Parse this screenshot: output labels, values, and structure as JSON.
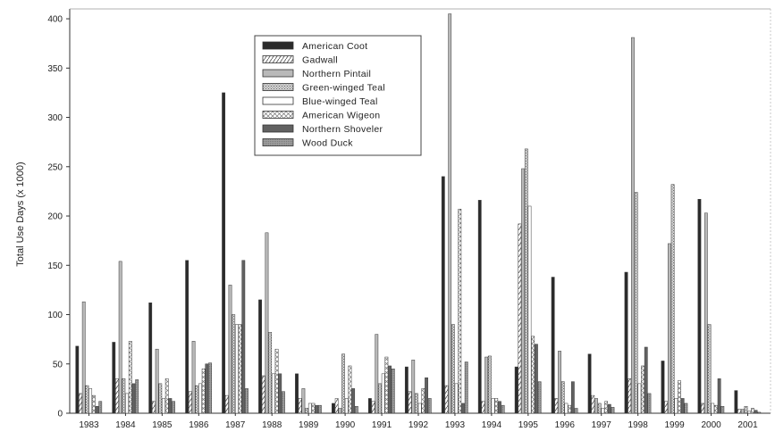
{
  "chart_data": {
    "type": "bar",
    "ylabel": "Total Use Days (x 1000)",
    "xlabel": "",
    "ylim": [
      0,
      410
    ],
    "yticks": [
      0,
      50,
      100,
      150,
      200,
      250,
      300,
      350,
      400
    ],
    "grid": false,
    "legend_position": "top-center",
    "categories": [
      "1983",
      "1984",
      "1985",
      "1986",
      "1987",
      "1988",
      "1989",
      "1990",
      "1991",
      "1992",
      "1993",
      "1994",
      "1995",
      "1996",
      "1997",
      "1998",
      "1999",
      "2000",
      "2001"
    ],
    "series": [
      {
        "name": "American Coot",
        "pattern": "solid-dark",
        "values": [
          68,
          72,
          112,
          155,
          325,
          115,
          40,
          10,
          15,
          47,
          240,
          216,
          47,
          138,
          60,
          143,
          53,
          217,
          23
        ]
      },
      {
        "name": "Gadwall",
        "pattern": "diagonal-dash",
        "values": [
          20,
          35,
          12,
          22,
          18,
          38,
          15,
          15,
          12,
          22,
          28,
          12,
          192,
          15,
          18,
          35,
          12,
          10,
          4
        ]
      },
      {
        "name": "Northern Pintail",
        "pattern": "light-gray",
        "values": [
          113,
          154,
          65,
          73,
          130,
          183,
          25,
          5,
          80,
          54,
          405,
          57,
          248,
          63,
          15,
          381,
          172,
          203,
          4
        ]
      },
      {
        "name": "Green-winged Teal",
        "pattern": "dotted-gray",
        "values": [
          28,
          35,
          30,
          28,
          100,
          82,
          5,
          60,
          30,
          20,
          90,
          58,
          268,
          32,
          10,
          224,
          232,
          90,
          7
        ]
      },
      {
        "name": "Blue-winged Teal",
        "pattern": "white",
        "values": [
          25,
          20,
          15,
          30,
          90,
          40,
          10,
          15,
          40,
          10,
          30,
          15,
          210,
          10,
          5,
          30,
          15,
          10,
          2
        ]
      },
      {
        "name": "American Wigeon",
        "pattern": "cross-hatch",
        "values": [
          18,
          73,
          35,
          45,
          90,
          65,
          10,
          48,
          57,
          25,
          207,
          15,
          78,
          8,
          12,
          48,
          33,
          8,
          5
        ]
      },
      {
        "name": "Northern Shoveler",
        "pattern": "dark-gray",
        "values": [
          7,
          30,
          15,
          50,
          155,
          40,
          8,
          25,
          48,
          36,
          10,
          12,
          70,
          32,
          9,
          67,
          15,
          35,
          3
        ]
      },
      {
        "name": "Wood Duck",
        "pattern": "medium-gray",
        "values": [
          12,
          34,
          12,
          51,
          25,
          22,
          8,
          7,
          45,
          15,
          52,
          8,
          32,
          5,
          6,
          20,
          10,
          7,
          1
        ]
      }
    ]
  }
}
